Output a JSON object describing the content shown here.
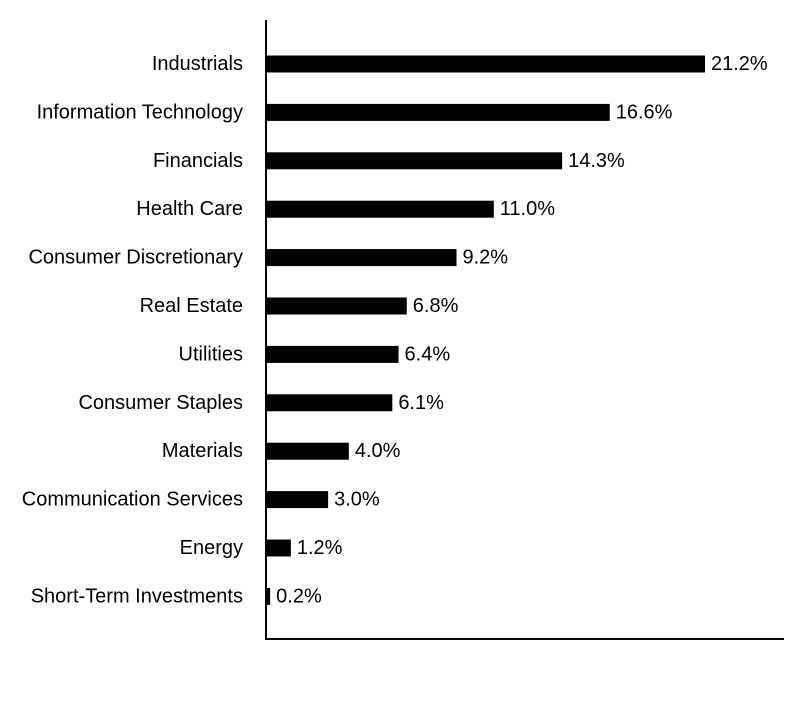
{
  "chart_data": {
    "type": "bar",
    "orientation": "horizontal",
    "title": "",
    "xlabel": "",
    "ylabel": "",
    "categories": [
      "Industrials",
      "Information Technology",
      "Financials",
      "Health Care",
      "Consumer Discretionary",
      "Real Estate",
      "Utilities",
      "Consumer Staples",
      "Materials",
      "Communication Services",
      "Energy",
      "Short-Term Investments"
    ],
    "values": [
      21.2,
      16.6,
      14.3,
      11.0,
      9.2,
      6.8,
      6.4,
      6.1,
      4.0,
      3.0,
      1.2,
      0.2
    ],
    "value_labels": [
      "21.2%",
      "16.6%",
      "14.3%",
      "11.0%",
      "9.2%",
      "6.8%",
      "6.4%",
      "6.1%",
      "4.0%",
      "3.0%",
      "1.2%",
      "0.2%"
    ],
    "xlim": [
      0,
      25
    ],
    "grid": false,
    "legend": "none",
    "bar_color": "#000000"
  }
}
